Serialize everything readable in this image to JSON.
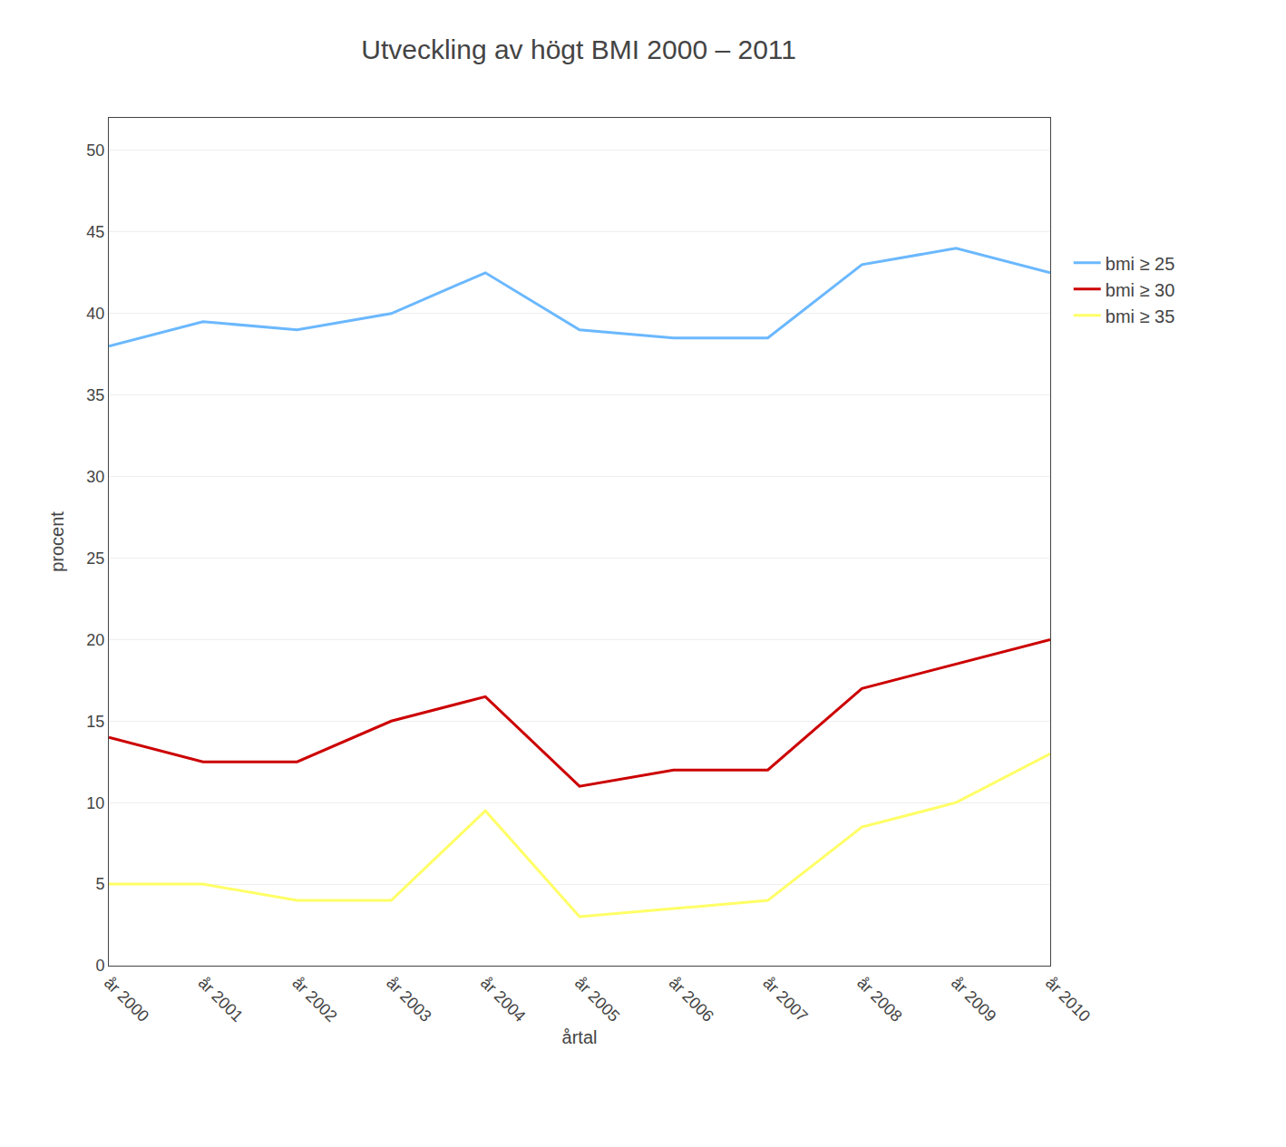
{
  "chart_data": {
    "type": "line",
    "title": "Utveckling av högt BMI 2000 – 2011",
    "xlabel": "årtal",
    "ylabel": "procent",
    "categories": [
      "år 2000",
      "år 2001",
      "år 2002",
      "år 2003",
      "år 2004",
      "år 2005",
      "år 2006",
      "år 2007",
      "år 2008",
      "år 2009",
      "år 2010"
    ],
    "series": [
      {
        "name": "bmi ≥ 25",
        "color": "#6BB8FF",
        "values": [
          38,
          39.5,
          39,
          40,
          42.5,
          39,
          38.5,
          38.5,
          43,
          44,
          42.5
        ]
      },
      {
        "name": "bmi ≥ 30",
        "color": "#CC0000",
        "values": [
          14,
          12.5,
          12.5,
          15,
          16.5,
          11,
          12,
          12,
          17,
          18.5,
          20
        ]
      },
      {
        "name": "bmi ≥ 35",
        "color": "#FFFF66",
        "values": [
          5,
          5,
          4,
          4,
          9.5,
          3,
          3.5,
          4,
          8.5,
          10,
          13
        ]
      }
    ],
    "ylim": [
      0,
      52
    ],
    "yticks": [
      0,
      5,
      10,
      15,
      20,
      25,
      30,
      35,
      40,
      45,
      50
    ],
    "grid": true,
    "legend": "right"
  }
}
